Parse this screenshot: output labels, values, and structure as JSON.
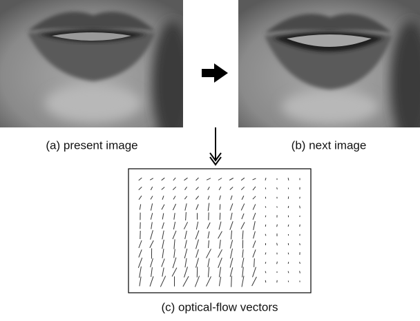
{
  "images": [
    {
      "caption": "(a) present image"
    },
    {
      "caption": "(b) next image"
    }
  ],
  "flow": {
    "caption": "(c) optical-flow vectors"
  }
}
